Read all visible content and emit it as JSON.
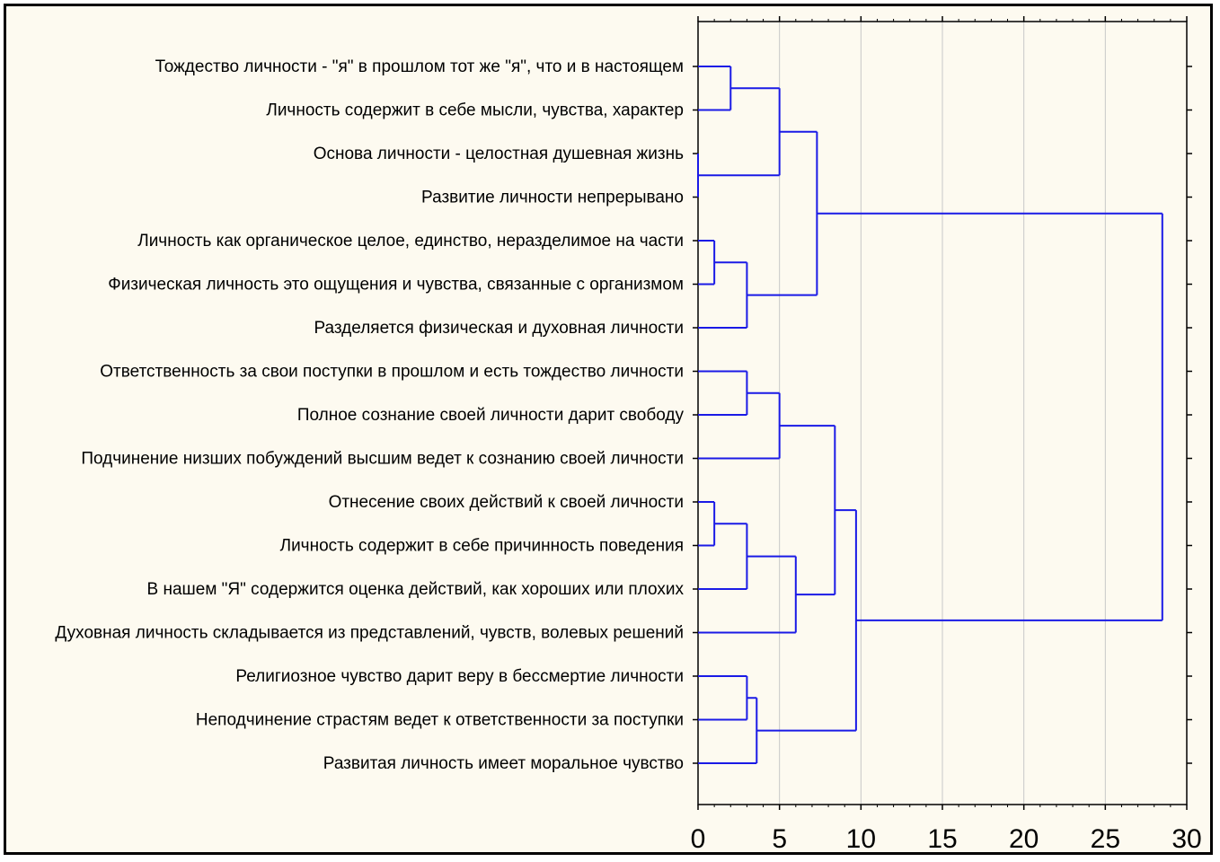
{
  "chart_data": {
    "type": "dendrogram",
    "orientation": "horizontal",
    "title": "",
    "xlabel": "",
    "ylabel": "",
    "xlim": [
      0,
      30
    ],
    "xticks": [
      "0",
      "5",
      "10",
      "15",
      "20",
      "25",
      "30"
    ],
    "grid": true,
    "colors": {
      "link": "#1a1ae6",
      "grid": "#c8c8c8",
      "plot_background": "#ffffff",
      "figure_background": "#fdfaf0"
    },
    "leaves": [
      "Тождество личности - \"я\" в прошлом тот же \"я\", что и в настоящем",
      "Личность содержит в себе мысли, чувства, характер",
      "Основа личности - целостная душевная жизнь",
      "Развитие личности непрерывано",
      "Личность как органическое целое, единство, неразделимое на части",
      "Физическая личность это ощущения и чувства, связанные с организмом",
      "Разделяется физическая и духовная личности",
      "Ответственность за свои поступки в прошлом и есть тождество личности",
      "Полное сознание своей личности дарит свободу",
      "Подчинение низших побуждений высшим ведет к сознанию своей личности",
      "Отнесение своих действий к своей личности",
      "Личность содержит в себе причинность поведения",
      "В нашем \"Я\" содержится оценка действий, как хороших или плохих",
      "Духовная личность складывается из представлений, чувств, волевых решений",
      "Религиозное чувство дарит веру в бессмертие личности",
      "Неподчинение страстям ведет к ответственности за поступки",
      "Развитая личность имеет моральное чувство"
    ],
    "merges": [
      {
        "a": "L3",
        "b": "L4",
        "height": 0
      },
      {
        "a": "L11",
        "b": "L12",
        "height": 1
      },
      {
        "a": "L5",
        "b": "L6",
        "height": 1
      },
      {
        "a": "L1",
        "b": "L2",
        "height": 2
      },
      {
        "a": "L8",
        "b": "L9",
        "height": 3
      },
      {
        "a": "L15",
        "b": "L16",
        "height": 3
      },
      {
        "a": "C2",
        "b": "L13",
        "height": 3
      },
      {
        "a": "C3",
        "b": "L7",
        "height": 3
      },
      {
        "a": "C6",
        "b": "L17",
        "height": 3.6
      },
      {
        "a": "C4",
        "b": "C1",
        "height": 5
      },
      {
        "a": "C5",
        "b": "L10",
        "height": 5
      },
      {
        "a": "C7",
        "b": "L14",
        "height": 6
      },
      {
        "a": "C10",
        "b": "C8",
        "height": 7.3
      },
      {
        "a": "C11",
        "b": "C12",
        "height": 8.4
      },
      {
        "a": "C14",
        "b": "C9",
        "height": 9.7
      },
      {
        "a": "C13",
        "b": "C15",
        "height": 28.5
      }
    ]
  }
}
